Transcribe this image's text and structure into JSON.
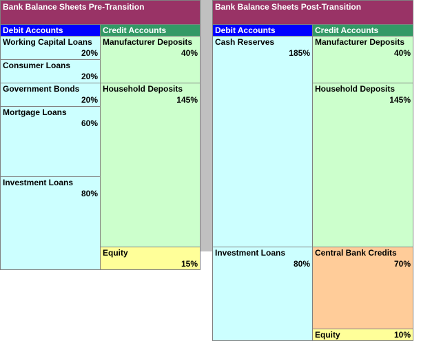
{
  "panels": [
    {
      "title": "Bank Balance Sheets Pre-Transition",
      "debit_header": "Debit Accounts",
      "credit_header": "Credit Accounts",
      "debit": [
        {
          "label": "Working Capital Loans",
          "value": "20%"
        },
        {
          "label": "Consumer Loans",
          "value": "20%"
        },
        {
          "label": "Government Bonds",
          "value": "20%"
        },
        {
          "label": "Mortgage Loans",
          "value": "60%"
        },
        {
          "label": "Investment Loans",
          "value": "80%"
        }
      ],
      "credit": [
        {
          "label": "Manufacturer Deposits",
          "value": "40%"
        },
        {
          "label": "Household Deposits",
          "value": "145%"
        },
        {
          "label": "Equity",
          "value": "15%"
        }
      ]
    },
    {
      "title": "Bank Balance Sheets Post-Transition",
      "debit_header": "Debit Accounts",
      "credit_header": "Credit Accounts",
      "debit": [
        {
          "label": "Cash Reserves",
          "value": "185%"
        },
        {
          "label": "Investment Loans",
          "value": "80%"
        }
      ],
      "credit": [
        {
          "label": "Manufacturer Deposits",
          "value": "40%"
        },
        {
          "label": "Household Deposits",
          "value": "145%"
        },
        {
          "label": "Central Bank Credits",
          "value": "70%"
        },
        {
          "label": "Equity",
          "value": "10%"
        }
      ]
    }
  ]
}
